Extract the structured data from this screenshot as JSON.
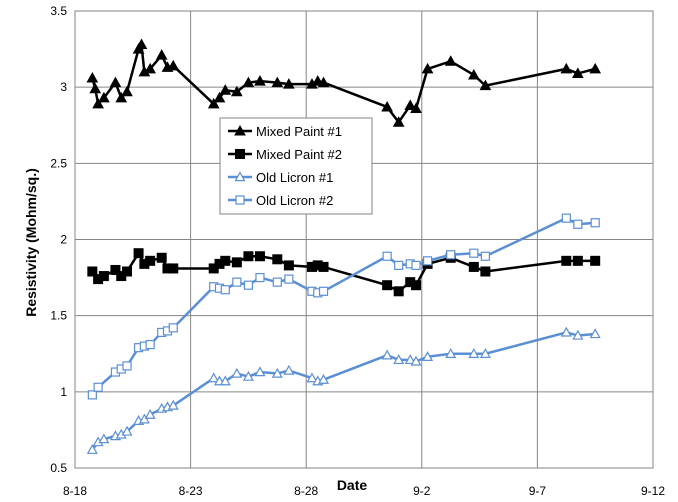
{
  "chart_data": {
    "type": "line",
    "xlabel": "Date",
    "ylabel": "Resistivity (Mohm/sq.)",
    "x_axis": {
      "type": "date",
      "year": 2000,
      "range": [
        "2000-08-18",
        "2000-09-12"
      ],
      "major_step_days": 5,
      "tick_labels": [
        "8-18",
        "8-23",
        "8-28",
        "9-2",
        "9-7",
        "9-12"
      ]
    },
    "ylim": [
      0.5,
      3.5
    ],
    "y_ticks": [
      0.5,
      1,
      1.5,
      2,
      2.5,
      3,
      3.5
    ],
    "y_tick_labels": [
      "0.5",
      "1",
      "1.5",
      "2",
      "2.5",
      "3",
      "3.5"
    ],
    "grid": {
      "horizontal": true,
      "vertical": true
    },
    "legend": {
      "position": "inside-upper-left-center"
    },
    "series": [
      {
        "name": "Mixed Paint #1",
        "color": "#000000",
        "marker": "filled-triangle",
        "points": [
          [
            "2000-08-18T18:00",
            3.06
          ],
          [
            "2000-08-18T21:00",
            2.99
          ],
          [
            "2000-08-19T00:00",
            2.89
          ],
          [
            "2000-08-19T06:00",
            2.93
          ],
          [
            "2000-08-19T18:00",
            3.03
          ],
          [
            "2000-08-20T00:00",
            2.93
          ],
          [
            "2000-08-20T06:00",
            2.97
          ],
          [
            "2000-08-20T18:00",
            3.25
          ],
          [
            "2000-08-20T21:00",
            3.28
          ],
          [
            "2000-08-21T00:00",
            3.1
          ],
          [
            "2000-08-21T06:00",
            3.12
          ],
          [
            "2000-08-21T18:00",
            3.21
          ],
          [
            "2000-08-22T00:00",
            3.13
          ],
          [
            "2000-08-22T06:00",
            3.14
          ],
          [
            "2000-08-24T00:00",
            2.89
          ],
          [
            "2000-08-24T06:00",
            2.93
          ],
          [
            "2000-08-24T12:00",
            2.98
          ],
          [
            "2000-08-25T00:00",
            2.97
          ],
          [
            "2000-08-25T12:00",
            3.03
          ],
          [
            "2000-08-26T00:00",
            3.04
          ],
          [
            "2000-08-26T18:00",
            3.03
          ],
          [
            "2000-08-27T06:00",
            3.02
          ],
          [
            "2000-08-28T06:00",
            3.02
          ],
          [
            "2000-08-28T12:00",
            3.04
          ],
          [
            "2000-08-28T18:00",
            3.03
          ],
          [
            "2000-08-31T12:00",
            2.87
          ],
          [
            "2000-09-01T00:00",
            2.77
          ],
          [
            "2000-09-01T12:00",
            2.88
          ],
          [
            "2000-09-01T18:00",
            2.86
          ],
          [
            "2000-09-02T06:00",
            3.12
          ],
          [
            "2000-09-03T06:00",
            3.17
          ],
          [
            "2000-09-04T06:00",
            3.08
          ],
          [
            "2000-09-04T18:00",
            3.01
          ],
          [
            "2000-09-08T06:00",
            3.12
          ],
          [
            "2000-09-08T18:00",
            3.09
          ],
          [
            "2000-09-09T12:00",
            3.12
          ]
        ]
      },
      {
        "name": "Mixed Paint #2",
        "color": "#000000",
        "marker": "filled-square",
        "points": [
          [
            "2000-08-18T18:00",
            1.79
          ],
          [
            "2000-08-19T00:00",
            1.74
          ],
          [
            "2000-08-19T06:00",
            1.76
          ],
          [
            "2000-08-19T18:00",
            1.8
          ],
          [
            "2000-08-20T00:00",
            1.76
          ],
          [
            "2000-08-20T06:00",
            1.79
          ],
          [
            "2000-08-20T18:00",
            1.91
          ],
          [
            "2000-08-21T00:00",
            1.84
          ],
          [
            "2000-08-21T06:00",
            1.86
          ],
          [
            "2000-08-21T18:00",
            1.88
          ],
          [
            "2000-08-22T00:00",
            1.81
          ],
          [
            "2000-08-22T06:00",
            1.81
          ],
          [
            "2000-08-24T00:00",
            1.81
          ],
          [
            "2000-08-24T06:00",
            1.84
          ],
          [
            "2000-08-24T12:00",
            1.86
          ],
          [
            "2000-08-25T00:00",
            1.85
          ],
          [
            "2000-08-25T12:00",
            1.89
          ],
          [
            "2000-08-26T00:00",
            1.89
          ],
          [
            "2000-08-26T18:00",
            1.87
          ],
          [
            "2000-08-27T06:00",
            1.83
          ],
          [
            "2000-08-28T06:00",
            1.82
          ],
          [
            "2000-08-28T12:00",
            1.83
          ],
          [
            "2000-08-28T18:00",
            1.82
          ],
          [
            "2000-08-31T12:00",
            1.7
          ],
          [
            "2000-09-01T00:00",
            1.66
          ],
          [
            "2000-09-01T12:00",
            1.72
          ],
          [
            "2000-09-01T18:00",
            1.7
          ],
          [
            "2000-09-02T06:00",
            1.84
          ],
          [
            "2000-09-03T06:00",
            1.88
          ],
          [
            "2000-09-04T06:00",
            1.82
          ],
          [
            "2000-09-04T18:00",
            1.79
          ],
          [
            "2000-09-08T06:00",
            1.86
          ],
          [
            "2000-09-08T18:00",
            1.86
          ],
          [
            "2000-09-09T12:00",
            1.86
          ]
        ]
      },
      {
        "name": "Old Licron #1",
        "color": "#5B8FD4",
        "marker": "open-triangle",
        "points": [
          [
            "2000-08-18T18:00",
            0.62
          ],
          [
            "2000-08-19T00:00",
            0.67
          ],
          [
            "2000-08-19T06:00",
            0.69
          ],
          [
            "2000-08-19T18:00",
            0.71
          ],
          [
            "2000-08-20T00:00",
            0.72
          ],
          [
            "2000-08-20T06:00",
            0.74
          ],
          [
            "2000-08-20T18:00",
            0.81
          ],
          [
            "2000-08-21T00:00",
            0.82
          ],
          [
            "2000-08-21T06:00",
            0.85
          ],
          [
            "2000-08-21T18:00",
            0.89
          ],
          [
            "2000-08-22T00:00",
            0.9
          ],
          [
            "2000-08-22T06:00",
            0.91
          ],
          [
            "2000-08-24T00:00",
            1.09
          ],
          [
            "2000-08-24T06:00",
            1.07
          ],
          [
            "2000-08-24T12:00",
            1.07
          ],
          [
            "2000-08-25T00:00",
            1.12
          ],
          [
            "2000-08-25T12:00",
            1.1
          ],
          [
            "2000-08-26T00:00",
            1.13
          ],
          [
            "2000-08-26T18:00",
            1.12
          ],
          [
            "2000-08-27T06:00",
            1.14
          ],
          [
            "2000-08-28T06:00",
            1.09
          ],
          [
            "2000-08-28T12:00",
            1.07
          ],
          [
            "2000-08-28T18:00",
            1.08
          ],
          [
            "2000-08-31T12:00",
            1.24
          ],
          [
            "2000-09-01T00:00",
            1.21
          ],
          [
            "2000-09-01T12:00",
            1.21
          ],
          [
            "2000-09-01T18:00",
            1.2
          ],
          [
            "2000-09-02T06:00",
            1.23
          ],
          [
            "2000-09-03T06:00",
            1.25
          ],
          [
            "2000-09-04T06:00",
            1.25
          ],
          [
            "2000-09-04T18:00",
            1.25
          ],
          [
            "2000-09-08T06:00",
            1.39
          ],
          [
            "2000-09-08T18:00",
            1.37
          ],
          [
            "2000-09-09T12:00",
            1.38
          ]
        ]
      },
      {
        "name": "Old Licron #2",
        "color": "#5B8FD4",
        "marker": "open-square",
        "points": [
          [
            "2000-08-18T18:00",
            0.98
          ],
          [
            "2000-08-19T00:00",
            1.03
          ],
          [
            "2000-08-19T18:00",
            1.13
          ],
          [
            "2000-08-20T00:00",
            1.15
          ],
          [
            "2000-08-20T06:00",
            1.17
          ],
          [
            "2000-08-20T18:00",
            1.29
          ],
          [
            "2000-08-21T00:00",
            1.3
          ],
          [
            "2000-08-21T06:00",
            1.31
          ],
          [
            "2000-08-21T18:00",
            1.39
          ],
          [
            "2000-08-22T00:00",
            1.4
          ],
          [
            "2000-08-22T06:00",
            1.42
          ],
          [
            "2000-08-24T00:00",
            1.69
          ],
          [
            "2000-08-24T06:00",
            1.68
          ],
          [
            "2000-08-24T12:00",
            1.67
          ],
          [
            "2000-08-25T00:00",
            1.72
          ],
          [
            "2000-08-25T12:00",
            1.7
          ],
          [
            "2000-08-26T00:00",
            1.75
          ],
          [
            "2000-08-26T18:00",
            1.72
          ],
          [
            "2000-08-27T06:00",
            1.74
          ],
          [
            "2000-08-28T06:00",
            1.66
          ],
          [
            "2000-08-28T12:00",
            1.65
          ],
          [
            "2000-08-28T18:00",
            1.66
          ],
          [
            "2000-08-31T12:00",
            1.89
          ],
          [
            "2000-09-01T00:00",
            1.83
          ],
          [
            "2000-09-01T12:00",
            1.84
          ],
          [
            "2000-09-01T18:00",
            1.83
          ],
          [
            "2000-09-02T06:00",
            1.86
          ],
          [
            "2000-09-03T06:00",
            1.9
          ],
          [
            "2000-09-04T06:00",
            1.91
          ],
          [
            "2000-09-04T18:00",
            1.89
          ],
          [
            "2000-09-08T06:00",
            2.14
          ],
          [
            "2000-09-08T18:00",
            2.1
          ],
          [
            "2000-09-09T12:00",
            2.11
          ]
        ]
      }
    ]
  }
}
